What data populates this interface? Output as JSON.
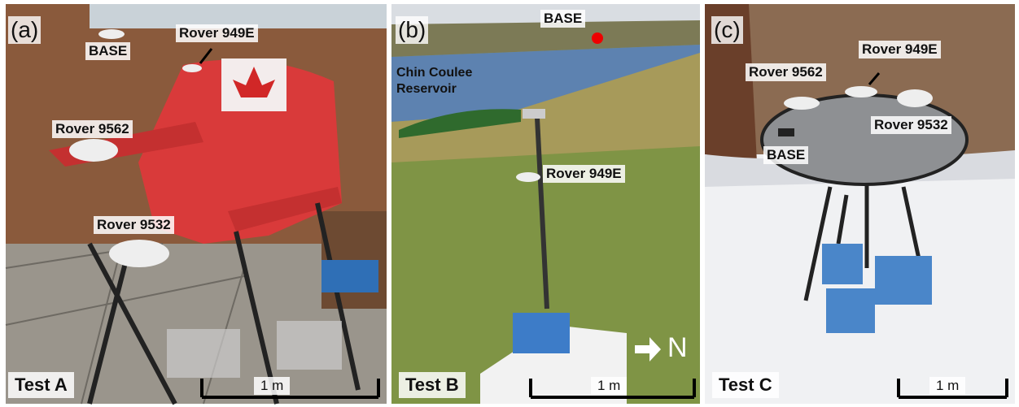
{
  "panels": [
    {
      "letter": "(a)",
      "labels": [
        "BASE",
        "Rover 949E",
        "Rover 9562",
        "Rover 9532"
      ],
      "test": "Test A",
      "scale": "1 m"
    },
    {
      "letter": "(b)",
      "labels": [
        "BASE",
        "Rover 949E"
      ],
      "place": "Chin Coulee Reservoir",
      "north": "N",
      "test": "Test B",
      "scale": "1 m"
    },
    {
      "letter": "(c)",
      "labels": [
        "Rover 949E",
        "Rover 9562",
        "Rover 9532",
        "BASE"
      ],
      "test": "Test C",
      "scale": "1 m"
    }
  ]
}
